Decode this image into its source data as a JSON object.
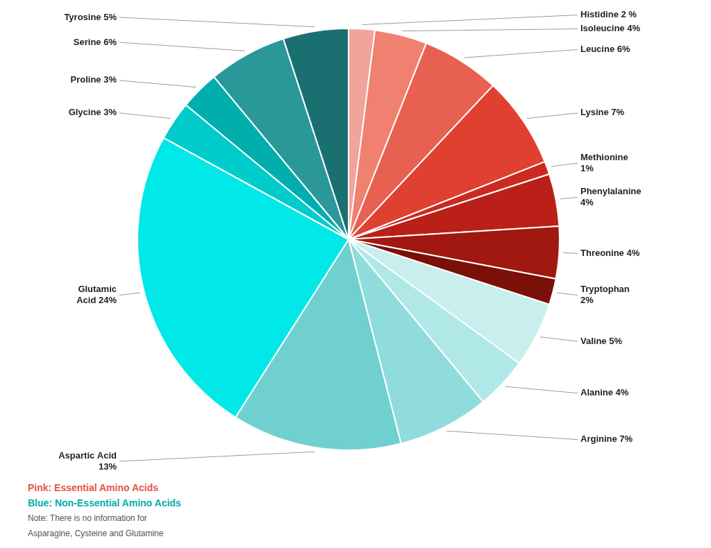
{
  "chart_data": {
    "type": "pie",
    "categories": [
      "Histidine 2 %",
      "Isoleucine 4%",
      "Leucine 6%",
      "Lysine 7%",
      "Methionine\n1%",
      "Phenylalanine\n4%",
      "Threonine 4%",
      "Tryptophan\n2%",
      "Valine 5%",
      "Alanine 4%",
      "Arginine 7%",
      "Aspartic Acid\n13%",
      "Glutamic\nAcid 24%",
      "Glycine 3%",
      "Proline 3%",
      "Serine 6%",
      "Tyrosine 5%"
    ],
    "values": [
      2,
      4,
      6,
      7,
      1,
      4,
      4,
      2,
      5,
      4,
      7,
      13,
      24,
      3,
      3,
      6,
      5
    ],
    "colors": [
      "#F2A49A",
      "#F08070",
      "#E86050",
      "#E04030",
      "#CC2A20",
      "#BB2018",
      "#A01810",
      "#7A1008",
      "#C8EEEE",
      "#B0E8E8",
      "#90DCDC",
      "#70D0D0",
      "#00E8E8",
      "#00CCCC",
      "#00AEAE",
      "#2A9898",
      "#1A7070"
    ],
    "legend": false,
    "annotations": [
      {
        "text": "Pink: Essential Amino Acids",
        "color": "#E8534A"
      },
      {
        "text": "Blue: Non-Essential Amino Acids",
        "color": "#00AEAE"
      },
      {
        "text": "Note: There is no information for",
        "color": "#555555"
      },
      {
        "text": "Asparagine, Cysteine and Glutamine",
        "color": "#555555"
      }
    ]
  }
}
